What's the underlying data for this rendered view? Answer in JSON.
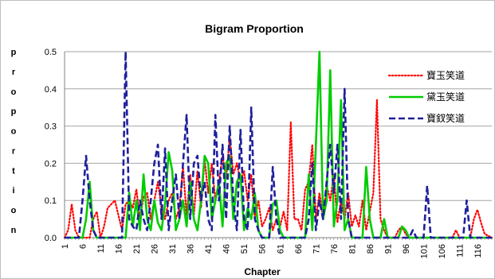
{
  "chart_data": {
    "type": "line",
    "title": "Bigram Proportion",
    "xlabel": "Chapter",
    "ylabel": "proportion",
    "ylim": [
      0,
      0.5
    ],
    "yticks": [
      "0.0",
      "0.1",
      "0.2",
      "0.3",
      "0.4",
      "0.5"
    ],
    "xlim": [
      1,
      120
    ],
    "xticks": [
      "1",
      "6",
      "11",
      "16",
      "21",
      "26",
      "31",
      "36",
      "41",
      "46",
      "51",
      "56",
      "61",
      "66",
      "71",
      "76",
      "81",
      "86",
      "91",
      "96",
      "101",
      "106",
      "111",
      "116"
    ],
    "grid": true,
    "legend_position": "right",
    "series": [
      {
        "name": "寶玉笑道",
        "color": "#ff0000",
        "style": "dotted",
        "points": [
          [
            1,
            0
          ],
          [
            2,
            0.02
          ],
          [
            3,
            0.09
          ],
          [
            4,
            0.02
          ],
          [
            5,
            0
          ],
          [
            8,
            0
          ],
          [
            9,
            0.05
          ],
          [
            10,
            0.07
          ],
          [
            11,
            0
          ],
          [
            12,
            0.03
          ],
          [
            13,
            0.08
          ],
          [
            14,
            0.09
          ],
          [
            15,
            0.1
          ],
          [
            16,
            0.06
          ],
          [
            17,
            0.02
          ],
          [
            18,
            0.09
          ],
          [
            19,
            0.1
          ],
          [
            20,
            0.08
          ],
          [
            21,
            0.13
          ],
          [
            22,
            0.05
          ],
          [
            23,
            0.11
          ],
          [
            24,
            0.12
          ],
          [
            25,
            0.05
          ],
          [
            26,
            0.1
          ],
          [
            27,
            0.15
          ],
          [
            28,
            0.08
          ],
          [
            29,
            0.05
          ],
          [
            30,
            0.1
          ],
          [
            31,
            0.12
          ],
          [
            32,
            0.05
          ],
          [
            33,
            0.08
          ],
          [
            34,
            0.19
          ],
          [
            35,
            0.06
          ],
          [
            36,
            0.17
          ],
          [
            37,
            0.06
          ],
          [
            38,
            0.18
          ],
          [
            39,
            0.08
          ],
          [
            40,
            0.21
          ],
          [
            41,
            0.12
          ],
          [
            42,
            0.2
          ],
          [
            43,
            0.1
          ],
          [
            44,
            0.15
          ],
          [
            45,
            0.22
          ],
          [
            46,
            0.16
          ],
          [
            47,
            0.27
          ],
          [
            48,
            0.17
          ],
          [
            49,
            0.2
          ],
          [
            50,
            0.15
          ],
          [
            51,
            0.18
          ],
          [
            52,
            0.1
          ],
          [
            53,
            0.17
          ],
          [
            54,
            0.05
          ],
          [
            55,
            0.1
          ],
          [
            56,
            0.03
          ],
          [
            57,
            0.05
          ],
          [
            58,
            0.08
          ],
          [
            59,
            0.02
          ],
          [
            60,
            0.05
          ],
          [
            61,
            0.03
          ],
          [
            62,
            0.07
          ],
          [
            63,
            0.02
          ],
          [
            64,
            0.31
          ],
          [
            65,
            0.05
          ],
          [
            66,
            0.05
          ],
          [
            67,
            0.02
          ],
          [
            68,
            0.13
          ],
          [
            69,
            0.15
          ],
          [
            70,
            0.25
          ],
          [
            71,
            0.05
          ],
          [
            72,
            0.12
          ],
          [
            73,
            0.05
          ],
          [
            74,
            0.14
          ],
          [
            75,
            0.1
          ],
          [
            76,
            0.17
          ],
          [
            77,
            0.04
          ],
          [
            78,
            0.1
          ],
          [
            79,
            0.05
          ],
          [
            80,
            0.12
          ],
          [
            81,
            0.03
          ],
          [
            82,
            0.06
          ],
          [
            83,
            0.03
          ],
          [
            84,
            0.1
          ],
          [
            85,
            0.02
          ],
          [
            86,
            0.07
          ],
          [
            87,
            0.12
          ],
          [
            88,
            0.37
          ],
          [
            89,
            0.05
          ],
          [
            90,
            0.02
          ],
          [
            91,
            0
          ],
          [
            93,
            0
          ],
          [
            94,
            0.02
          ],
          [
            95,
            0.03
          ],
          [
            96,
            0.01
          ],
          [
            97,
            0
          ],
          [
            109,
            0
          ],
          [
            110,
            0.02
          ],
          [
            111,
            0
          ],
          [
            114,
            0
          ],
          [
            115,
            0.05
          ],
          [
            116,
            0.075
          ],
          [
            117,
            0.04
          ],
          [
            118,
            0.01
          ],
          [
            120,
            0
          ]
        ]
      },
      {
        "name": "黛玉笑道",
        "color": "#00cc00",
        "style": "solid",
        "points": [
          [
            1,
            0
          ],
          [
            6,
            0
          ],
          [
            7,
            0.05
          ],
          [
            8,
            0.15
          ],
          [
            9,
            0.02
          ],
          [
            10,
            0
          ],
          [
            18,
            0
          ],
          [
            19,
            0.12
          ],
          [
            20,
            0.03
          ],
          [
            21,
            0.1
          ],
          [
            22,
            0.02
          ],
          [
            23,
            0.17
          ],
          [
            24,
            0.05
          ],
          [
            25,
            0.02
          ],
          [
            26,
            0.1
          ],
          [
            27,
            0.04
          ],
          [
            28,
            0.02
          ],
          [
            29,
            0.09
          ],
          [
            30,
            0.23
          ],
          [
            31,
            0.18
          ],
          [
            32,
            0.02
          ],
          [
            33,
            0.05
          ],
          [
            34,
            0.1
          ],
          [
            35,
            0.03
          ],
          [
            36,
            0.15
          ],
          [
            37,
            0.05
          ],
          [
            38,
            0.02
          ],
          [
            39,
            0.1
          ],
          [
            40,
            0.22
          ],
          [
            41,
            0.2
          ],
          [
            42,
            0.05
          ],
          [
            43,
            0.1
          ],
          [
            44,
            0.15
          ],
          [
            45,
            0.03
          ],
          [
            46,
            0.2
          ],
          [
            47,
            0.22
          ],
          [
            48,
            0.05
          ],
          [
            49,
            0.15
          ],
          [
            50,
            0.17
          ],
          [
            51,
            0.02
          ],
          [
            52,
            0.08
          ],
          [
            53,
            0.05
          ],
          [
            54,
            0.12
          ],
          [
            55,
            0.02
          ],
          [
            56,
            0
          ],
          [
            58,
            0
          ],
          [
            59,
            0.09
          ],
          [
            60,
            0.1
          ],
          [
            61,
            0.02
          ],
          [
            62,
            0
          ],
          [
            68,
            0
          ],
          [
            69,
            0.17
          ],
          [
            70,
            0.02
          ],
          [
            71,
            0.25
          ],
          [
            72,
            0.5
          ],
          [
            73,
            0.05
          ],
          [
            74,
            0.1
          ],
          [
            75,
            0.45
          ],
          [
            76,
            0.03
          ],
          [
            77,
            0.1
          ],
          [
            78,
            0.37
          ],
          [
            79,
            0.02
          ],
          [
            80,
            0.05
          ],
          [
            81,
            0
          ],
          [
            84,
            0
          ],
          [
            85,
            0.19
          ],
          [
            86,
            0.05
          ],
          [
            87,
            0
          ],
          [
            89,
            0
          ],
          [
            90,
            0.05
          ],
          [
            91,
            0
          ],
          [
            94,
            0
          ],
          [
            95,
            0.03
          ],
          [
            96,
            0.02
          ],
          [
            97,
            0
          ],
          [
            120,
            0
          ]
        ]
      },
      {
        "name": "寶釵笑道",
        "color": "#1f1f9c",
        "style": "dashed",
        "points": [
          [
            1,
            0
          ],
          [
            5,
            0
          ],
          [
            6,
            0.1
          ],
          [
            7,
            0.22
          ],
          [
            8,
            0.1
          ],
          [
            9,
            0.02
          ],
          [
            10,
            0
          ],
          [
            17,
            0
          ],
          [
            18,
            0.5
          ],
          [
            19,
            0.05
          ],
          [
            20,
            0.03
          ],
          [
            21,
            0.02
          ],
          [
            22,
            0.1
          ],
          [
            23,
            0.05
          ],
          [
            24,
            0.02
          ],
          [
            25,
            0.1
          ],
          [
            26,
            0.2
          ],
          [
            27,
            0.25
          ],
          [
            28,
            0.05
          ],
          [
            29,
            0.24
          ],
          [
            30,
            0.02
          ],
          [
            31,
            0.1
          ],
          [
            32,
            0.17
          ],
          [
            33,
            0.05
          ],
          [
            34,
            0.2
          ],
          [
            35,
            0.33
          ],
          [
            36,
            0.05
          ],
          [
            37,
            0.2
          ],
          [
            38,
            0.22
          ],
          [
            39,
            0.1
          ],
          [
            40,
            0.15
          ],
          [
            41,
            0.05
          ],
          [
            42,
            0.02
          ],
          [
            43,
            0.33
          ],
          [
            44,
            0.1
          ],
          [
            45,
            0.25
          ],
          [
            46,
            0.05
          ],
          [
            47,
            0.3
          ],
          [
            48,
            0.1
          ],
          [
            49,
            0.02
          ],
          [
            50,
            0.29
          ],
          [
            51,
            0.05
          ],
          [
            52,
            0.02
          ],
          [
            53,
            0.35
          ],
          [
            54,
            0.05
          ],
          [
            55,
            0.02
          ],
          [
            56,
            0
          ],
          [
            58,
            0
          ],
          [
            59,
            0.19
          ],
          [
            60,
            0.05
          ],
          [
            61,
            0
          ],
          [
            68,
            0
          ],
          [
            69,
            0.05
          ],
          [
            70,
            0.2
          ],
          [
            71,
            0.02
          ],
          [
            72,
            0.1
          ],
          [
            73,
            0.05
          ],
          [
            74,
            0.15
          ],
          [
            75,
            0.25
          ],
          [
            76,
            0.12
          ],
          [
            77,
            0.25
          ],
          [
            78,
            0.05
          ],
          [
            79,
            0.4
          ],
          [
            80,
            0.05
          ],
          [
            81,
            0
          ],
          [
            97,
            0
          ],
          [
            98,
            0.02
          ],
          [
            99,
            0
          ],
          [
            101,
            0
          ],
          [
            102,
            0.14
          ],
          [
            103,
            0
          ],
          [
            112,
            0
          ],
          [
            113,
            0.1
          ],
          [
            114,
            0
          ],
          [
            120,
            0
          ]
        ]
      }
    ]
  }
}
